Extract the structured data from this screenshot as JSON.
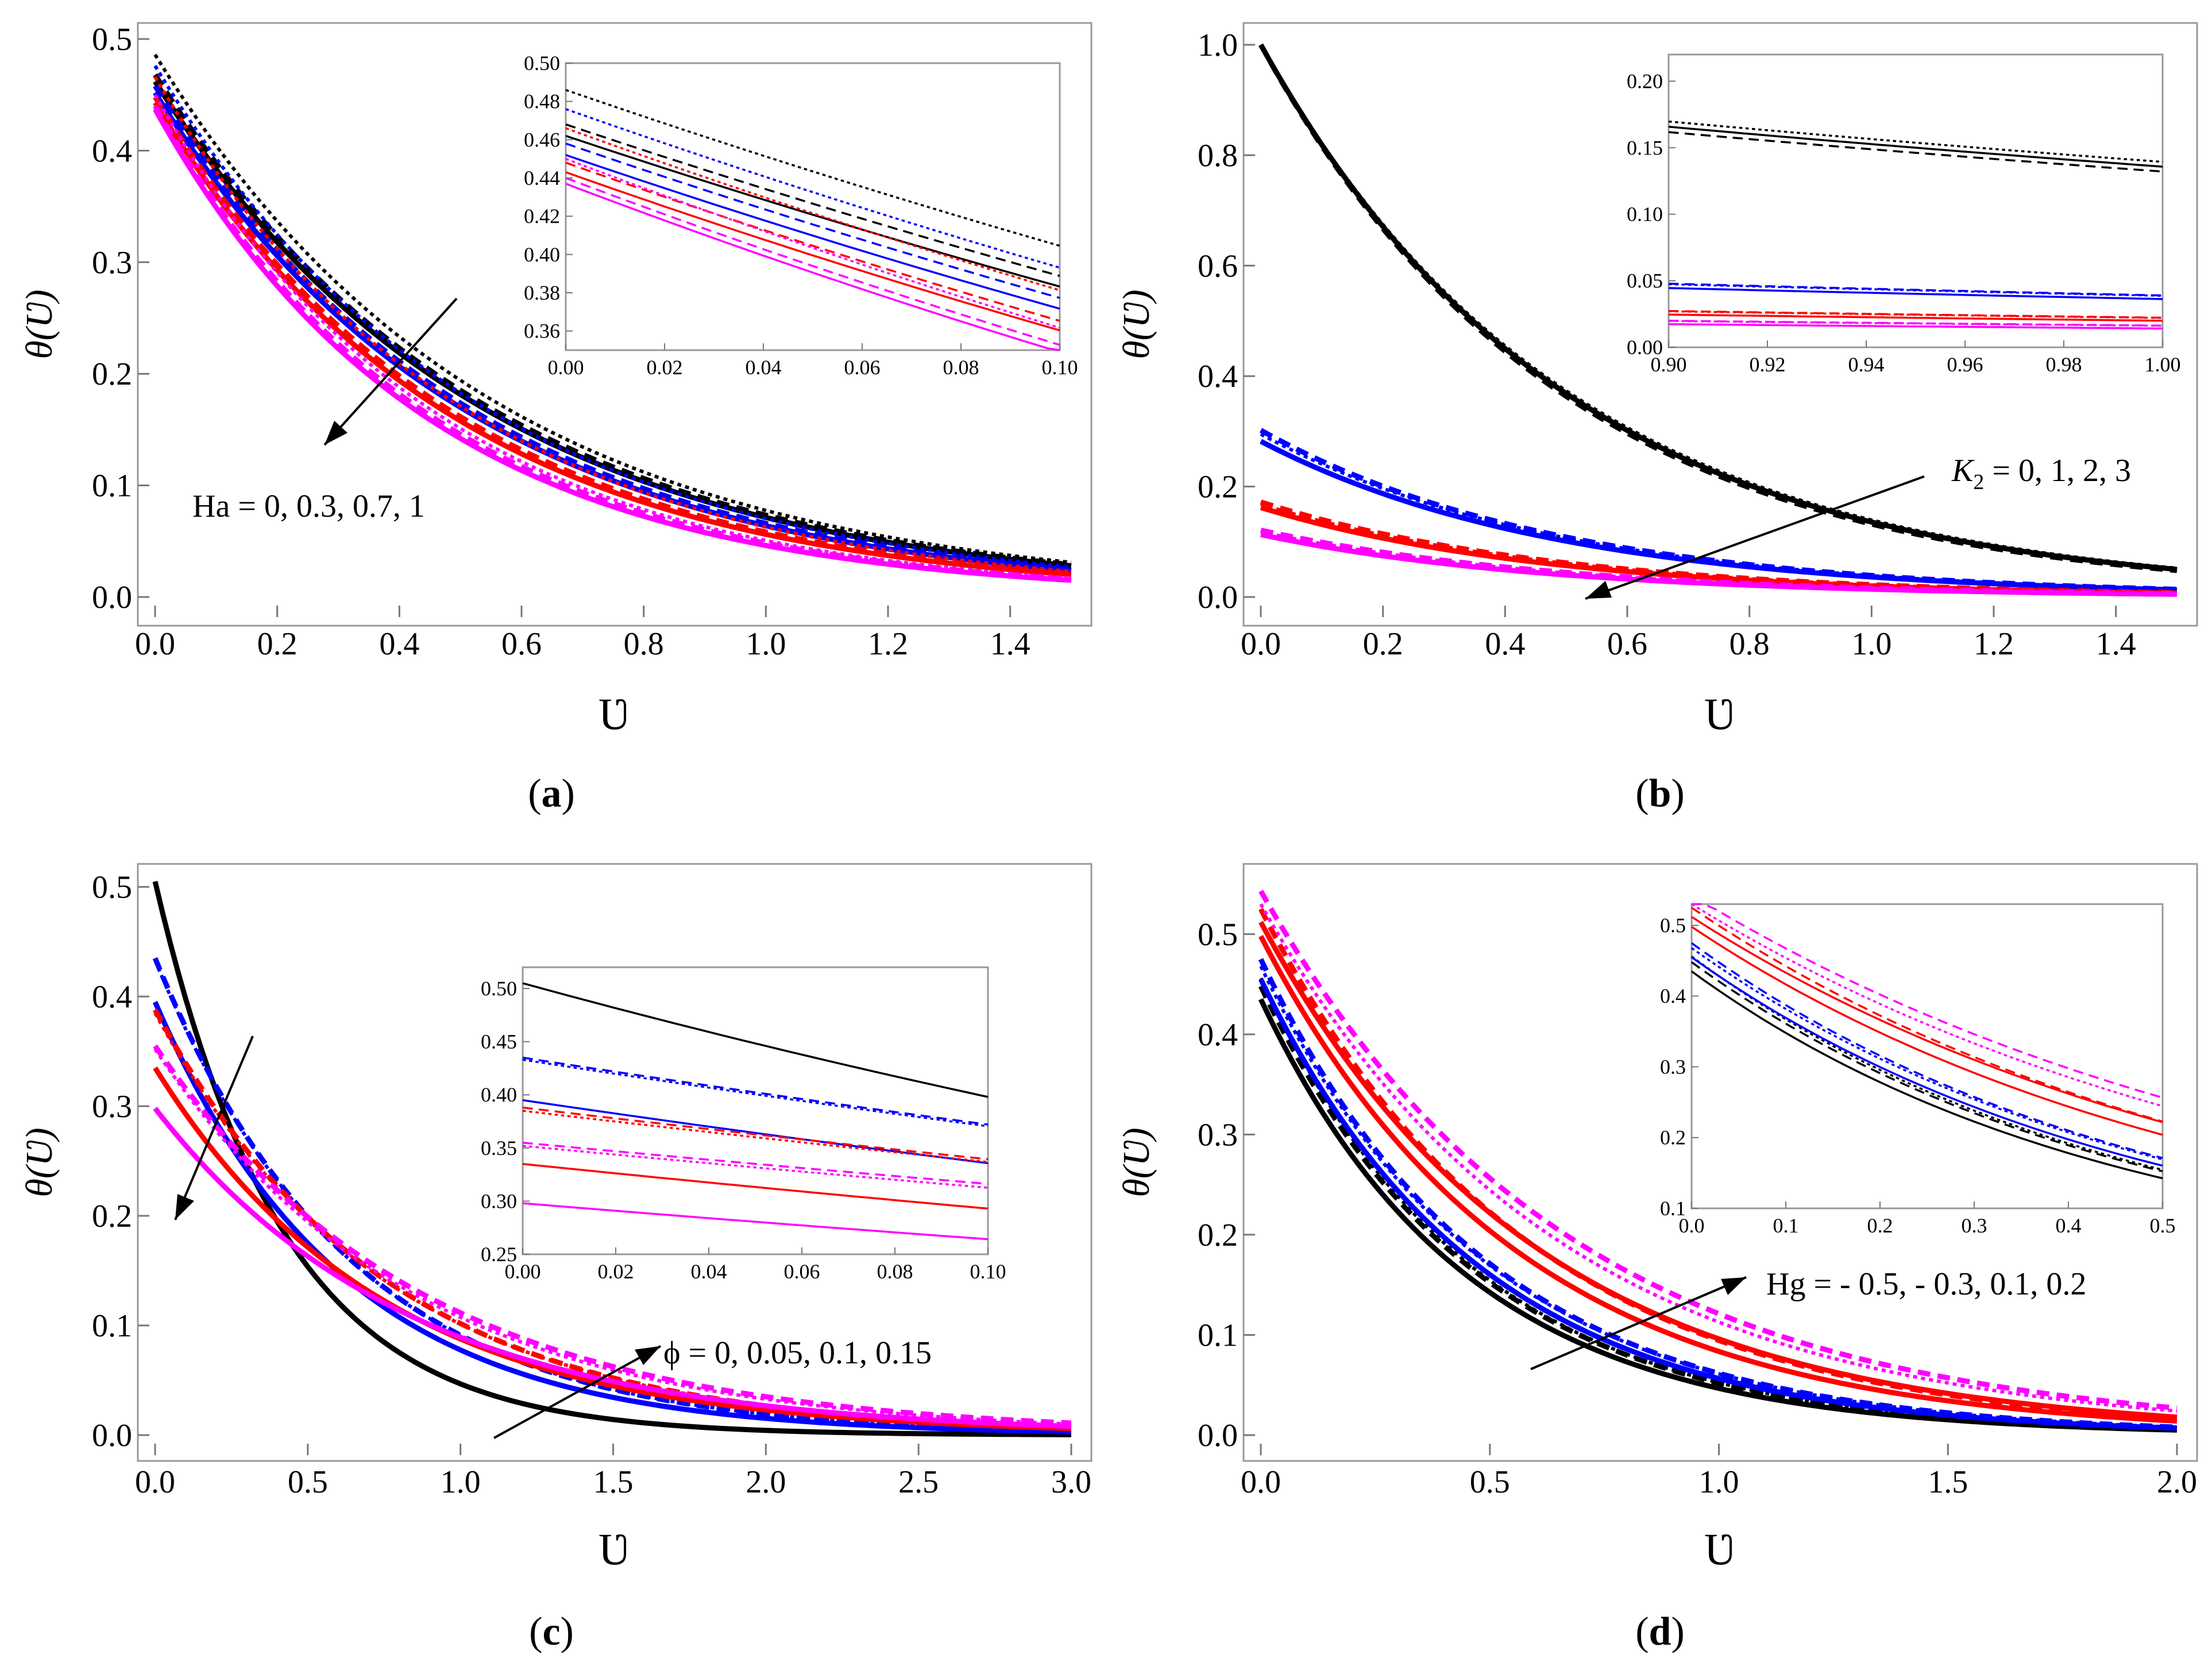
{
  "chart_data": [
    {
      "id": "a",
      "type": "line",
      "panel_label": "a",
      "xlabel": "Ʋ",
      "ylabel": "θ(Ʋ)",
      "xlim": [
        0,
        1.5
      ],
      "ylim": [
        0,
        0.5
      ],
      "xticks": [
        0,
        0.2,
        0.4,
        0.6,
        0.8,
        1.0,
        1.2,
        1.4
      ],
      "xtick_labels": [
        "0.0",
        "0.2",
        "0.4",
        "0.6",
        "0.8",
        "1.0",
        "1.2",
        "1.4"
      ],
      "yticks": [
        0,
        0.1,
        0.2,
        0.3,
        0.4,
        0.5
      ],
      "ytick_labels": [
        "0.0",
        "0.1",
        "0.2",
        "0.3",
        "0.4",
        "0.5"
      ],
      "annotation": "Ha = 0, 0.3, 0.7, 1",
      "series": [
        {
          "name": "Ha=0 solid",
          "color": "#000000",
          "style": "solid",
          "start": 0.462,
          "end": 0.028
        },
        {
          "name": "Ha=0 dashed",
          "color": "#000000",
          "style": "dashed",
          "start": 0.468,
          "end": 0.029
        },
        {
          "name": "Ha=0 dotted",
          "color": "#000000",
          "style": "dotted",
          "start": 0.486,
          "end": 0.031
        },
        {
          "name": "Ha=0.3 solid",
          "color": "#0000ff",
          "style": "solid",
          "start": 0.452,
          "end": 0.024
        },
        {
          "name": "Ha=0.3 dashed",
          "color": "#0000ff",
          "style": "dashed",
          "start": 0.458,
          "end": 0.025
        },
        {
          "name": "Ha=0.3 dotted",
          "color": "#0000ff",
          "style": "dotted",
          "start": 0.476,
          "end": 0.027
        },
        {
          "name": "Ha=0.7 solid",
          "color": "#ff0000",
          "style": "solid",
          "start": 0.443,
          "end": 0.02
        },
        {
          "name": "Ha=0.7 dashed",
          "color": "#ff0000",
          "style": "dashed",
          "start": 0.448,
          "end": 0.021
        },
        {
          "name": "Ha=0.7 dotted",
          "color": "#ff0000",
          "style": "dotted",
          "start": 0.466,
          "end": 0.023
        },
        {
          "name": "Ha=1 solid",
          "color": "#ff00ff",
          "style": "solid",
          "start": 0.437,
          "end": 0.015
        },
        {
          "name": "Ha=1 dashed",
          "color": "#ff00ff",
          "style": "dashed",
          "start": 0.44,
          "end": 0.016
        },
        {
          "name": "Ha=1 dotted",
          "color": "#ff00ff",
          "style": "dotted",
          "start": 0.45,
          "end": 0.017
        }
      ],
      "inset": {
        "xlim": [
          0,
          0.1
        ],
        "ylim": [
          0.35,
          0.5
        ],
        "xticks": [
          0,
          0.02,
          0.04,
          0.06,
          0.08,
          0.1
        ],
        "xtick_labels": [
          "0.00",
          "0.02",
          "0.04",
          "0.06",
          "0.08",
          "0.10"
        ],
        "yticks": [
          0.36,
          0.38,
          0.4,
          0.42,
          0.44,
          0.46,
          0.48,
          0.5
        ],
        "ytick_labels": [
          "0.36",
          "0.38",
          "0.40",
          "0.42",
          "0.44",
          "0.46",
          "0.48",
          "0.50"
        ]
      }
    },
    {
      "id": "b",
      "type": "line",
      "panel_label": "b",
      "xlabel": "Ʋ",
      "ylabel": "θ(Ʋ)",
      "xlim": [
        0,
        1.5
      ],
      "ylim": [
        0,
        1.0
      ],
      "xticks": [
        0,
        0.2,
        0.4,
        0.6,
        0.8,
        1.0,
        1.2,
        1.4
      ],
      "xtick_labels": [
        "0.0",
        "0.2",
        "0.4",
        "0.6",
        "0.8",
        "1.0",
        "1.2",
        "1.4"
      ],
      "yticks": [
        0,
        0.2,
        0.4,
        0.6,
        0.8,
        1.0
      ],
      "ytick_labels": [
        "0.0",
        "0.2",
        "0.4",
        "0.6",
        "0.8",
        "1.0"
      ],
      "annotation_symbol": "K",
      "annotation_subscript": "2",
      "annotation_values": " = 0, 1, 2, 3",
      "series": [
        {
          "name": "K2=0 solid",
          "color": "#000000",
          "style": "solid",
          "start": 1.0,
          "end": 0.05
        },
        {
          "name": "K2=0 dashed",
          "color": "#000000",
          "style": "dashed",
          "start": 1.0,
          "end": 0.048
        },
        {
          "name": "K2=0 dotted",
          "color": "#000000",
          "style": "dotted",
          "start": 1.0,
          "end": 0.052
        },
        {
          "name": "K2=1 solid",
          "color": "#0000ff",
          "style": "solid",
          "start": 0.282,
          "end": 0.013
        },
        {
          "name": "K2=1 dashed",
          "color": "#0000ff",
          "style": "dashed",
          "start": 0.302,
          "end": 0.014
        },
        {
          "name": "K2=1 dotted",
          "color": "#0000ff",
          "style": "dotted",
          "start": 0.295,
          "end": 0.014
        },
        {
          "name": "K2=2 solid",
          "color": "#ff0000",
          "style": "solid",
          "start": 0.162,
          "end": 0.007
        },
        {
          "name": "K2=2 dashed",
          "color": "#ff0000",
          "style": "dashed",
          "start": 0.172,
          "end": 0.008
        },
        {
          "name": "K2=2 dotted",
          "color": "#ff0000",
          "style": "dotted",
          "start": 0.168,
          "end": 0.008
        },
        {
          "name": "K2=3 solid",
          "color": "#ff00ff",
          "style": "solid",
          "start": 0.113,
          "end": 0.005
        },
        {
          "name": "K2=3 dashed",
          "color": "#ff00ff",
          "style": "dashed",
          "start": 0.121,
          "end": 0.006
        },
        {
          "name": "K2=3 dotted",
          "color": "#ff00ff",
          "style": "dotted",
          "start": 0.118,
          "end": 0.006
        }
      ],
      "inset": {
        "xlim": [
          0.9,
          1.0
        ],
        "ylim": [
          0,
          0.22
        ],
        "xticks": [
          0.9,
          0.92,
          0.94,
          0.96,
          0.98,
          1.0
        ],
        "xtick_labels": [
          "0.90",
          "0.92",
          "0.94",
          "0.96",
          "0.98",
          "1.00"
        ],
        "yticks": [
          0,
          0.05,
          0.1,
          0.15,
          0.2
        ],
        "ytick_labels": [
          "0.00",
          "0.05",
          "0.10",
          "0.15",
          "0.20"
        ]
      }
    },
    {
      "id": "c",
      "type": "line",
      "panel_label": "c",
      "xlabel": "Ʋ",
      "ylabel": "θ(Ʋ)",
      "xlim": [
        0,
        3.0
      ],
      "ylim": [
        0,
        0.5
      ],
      "xticks": [
        0,
        0.5,
        1.0,
        1.5,
        2.0,
        2.5,
        3.0
      ],
      "xtick_labels": [
        "0.0",
        "0.5",
        "1.0",
        "1.5",
        "2.0",
        "2.5",
        "3.0"
      ],
      "yticks": [
        0,
        0.1,
        0.2,
        0.3,
        0.4,
        0.5
      ],
      "ytick_labels": [
        "0.0",
        "0.1",
        "0.2",
        "0.3",
        "0.4",
        "0.5"
      ],
      "annotation": "ϕ = 0, 0.05, 0.1, 0.15",
      "series": [
        {
          "name": "phi=0 solid",
          "color": "#000000",
          "style": "solid",
          "start": 0.505,
          "end": 0.0004
        },
        {
          "name": "phi=0.05 solid",
          "color": "#0000ff",
          "style": "solid",
          "start": 0.395,
          "end": 0.003
        },
        {
          "name": "phi=0.05 dashed",
          "color": "#0000ff",
          "style": "dashed",
          "start": 0.435,
          "end": 0.004
        },
        {
          "name": "phi=0.05 dotted",
          "color": "#0000ff",
          "style": "dotted",
          "start": 0.433,
          "end": 0.004
        },
        {
          "name": "phi=0.1 solid",
          "color": "#ff0000",
          "style": "solid",
          "start": 0.335,
          "end": 0.006
        },
        {
          "name": "phi=0.1 dashed",
          "color": "#ff0000",
          "style": "dashed",
          "start": 0.388,
          "end": 0.007
        },
        {
          "name": "phi=0.1 dotted",
          "color": "#ff0000",
          "style": "dotted",
          "start": 0.385,
          "end": 0.007
        },
        {
          "name": "phi=0.15 solid",
          "color": "#ff00ff",
          "style": "solid",
          "start": 0.298,
          "end": 0.008
        },
        {
          "name": "phi=0.15 dashed",
          "color": "#ff00ff",
          "style": "dashed",
          "start": 0.355,
          "end": 0.011
        },
        {
          "name": "phi=0.15 dotted",
          "color": "#ff00ff",
          "style": "dotted",
          "start": 0.352,
          "end": 0.01
        }
      ],
      "inset": {
        "xlim": [
          0,
          0.1
        ],
        "ylim": [
          0.25,
          0.52
        ],
        "xticks": [
          0,
          0.02,
          0.04,
          0.06,
          0.08,
          0.1
        ],
        "xtick_labels": [
          "0.00",
          "0.02",
          "0.04",
          "0.06",
          "0.08",
          "0.10"
        ],
        "yticks": [
          0.25,
          0.3,
          0.35,
          0.4,
          0.45,
          0.5
        ],
        "ytick_labels": [
          "0.25",
          "0.30",
          "0.35",
          "0.40",
          "0.45",
          "0.50"
        ]
      }
    },
    {
      "id": "d",
      "type": "line",
      "panel_label": "d",
      "xlabel": "Ʋ",
      "ylabel": "θ(Ʋ)",
      "xlim": [
        0,
        2.0
      ],
      "ylim": [
        0,
        0.55
      ],
      "xticks": [
        0,
        0.5,
        1.0,
        1.5,
        2.0
      ],
      "xtick_labels": [
        "0.0",
        "0.5",
        "1.0",
        "1.5",
        "2.0"
      ],
      "yticks": [
        0,
        0.1,
        0.2,
        0.3,
        0.4,
        0.5
      ],
      "ytick_labels": [
        "0.0",
        "0.1",
        "0.2",
        "0.3",
        "0.4",
        "0.5"
      ],
      "annotation": "Hg = - 0.5, - 0.3, 0.1, 0.2",
      "series": [
        {
          "name": "Hg=-0.5 solid",
          "color": "#000000",
          "style": "solid",
          "start": 0.435,
          "end": 0.005
        },
        {
          "name": "Hg=-0.5 dashed",
          "color": "#000000",
          "style": "dashed",
          "start": 0.448,
          "end": 0.006
        },
        {
          "name": "Hg=-0.5 dotted",
          "color": "#000000",
          "style": "dotted",
          "start": 0.456,
          "end": 0.006
        },
        {
          "name": "Hg=-0.3 solid",
          "color": "#0000ff",
          "style": "solid",
          "start": 0.455,
          "end": 0.007
        },
        {
          "name": "Hg=-0.3 dashed",
          "color": "#0000ff",
          "style": "dashed",
          "start": 0.475,
          "end": 0.008
        },
        {
          "name": "Hg=-0.3 dotted",
          "color": "#0000ff",
          "style": "dotted",
          "start": 0.468,
          "end": 0.008
        },
        {
          "name": "Hg=0.1 solid",
          "color": "#ff0000",
          "style": "solid",
          "start": 0.498,
          "end": 0.014
        },
        {
          "name": "Hg=0.1 dashed",
          "color": "#ff0000",
          "style": "dashed",
          "start": 0.525,
          "end": 0.017
        },
        {
          "name": "Hg=0.2 solid",
          "color": "#ff0000",
          "style": "solid",
          "start": 0.512,
          "end": 0.018
        },
        {
          "name": "Hg=0.2 dashed",
          "color": "#ff00ff",
          "style": "dashed",
          "start": 0.543,
          "end": 0.027
        },
        {
          "name": "Hg=0.2 dotted",
          "color": "#ff00ff",
          "style": "dotted",
          "start": 0.53,
          "end": 0.024
        }
      ],
      "inset": {
        "xlim": [
          0,
          0.5
        ],
        "ylim": [
          0.1,
          0.53
        ],
        "xticks": [
          0,
          0.1,
          0.2,
          0.3,
          0.4,
          0.5
        ],
        "xtick_labels": [
          "0.0",
          "0.1",
          "0.2",
          "0.3",
          "0.4",
          "0.5"
        ],
        "yticks": [
          0.1,
          0.2,
          0.3,
          0.4,
          0.5
        ],
        "ytick_labels": [
          "0.1",
          "0.2",
          "0.3",
          "0.4",
          "0.5"
        ]
      }
    }
  ]
}
